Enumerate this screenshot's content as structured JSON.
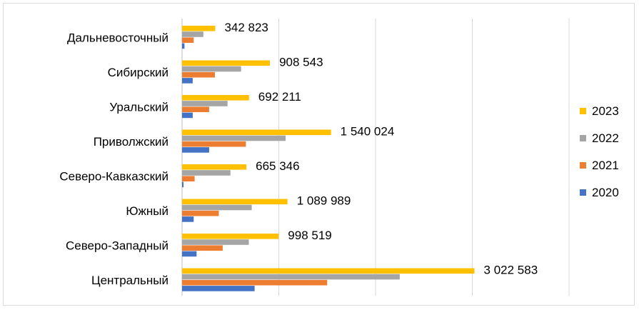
{
  "chart_data": {
    "type": "bar",
    "orientation": "horizontal",
    "categories": [
      "Дальневосточный",
      "Сибирский",
      "Уральский",
      "Приволжский",
      "Северо-Кавказский",
      "Южный",
      "Северо-Западный",
      "Центральный"
    ],
    "series": [
      {
        "name": "2023",
        "color": "#FFC000",
        "values": [
          342823,
          908543,
          692211,
          1540024,
          665346,
          1089989,
          998519,
          3022583
        ]
      },
      {
        "name": "2022",
        "color": "#A5A5A5",
        "values": [
          220000,
          610000,
          470000,
          1070000,
          500000,
          720000,
          690000,
          2250000
        ]
      },
      {
        "name": "2021",
        "color": "#ED7D31",
        "values": [
          120000,
          340000,
          280000,
          660000,
          130000,
          380000,
          420000,
          1500000
        ]
      },
      {
        "name": "2020",
        "color": "#4472C4",
        "values": [
          25000,
          110000,
          110000,
          280000,
          15000,
          120000,
          150000,
          750000
        ]
      }
    ],
    "data_labels": {
      "series": "2023",
      "texts": [
        "342 823",
        "908 543",
        "692 211",
        "1 540 024",
        "665 346",
        "1 089 989",
        "998 519",
        "3 022 583"
      ]
    },
    "xlim": [
      0,
      4000000
    ],
    "grid_step": 1000000,
    "grid": true,
    "legend": {
      "position": "right",
      "order": [
        "2023",
        "2022",
        "2021",
        "2020"
      ]
    }
  }
}
